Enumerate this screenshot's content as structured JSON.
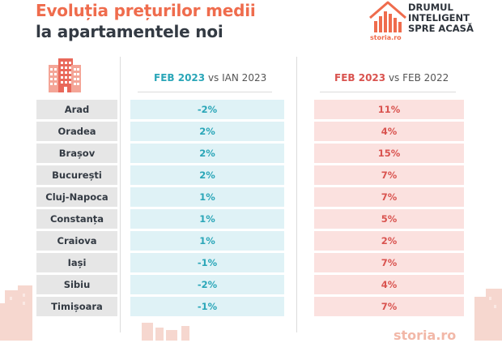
{
  "header": {
    "title_line1": "Evoluția prețurilor medii",
    "title_line2": "la apartamentele noi"
  },
  "logo": {
    "brand": "storia.ro",
    "slogan": [
      "DRUMUL",
      "INTELIGENT",
      "SPRE ACASĂ"
    ]
  },
  "columns": {
    "col1": {
      "bold": "FEB 2023",
      "vs": "vs",
      "rest": "IAN 2023"
    },
    "col2": {
      "bold": "FEB 2023",
      "vs": "vs",
      "rest": "FEB 2022"
    }
  },
  "rows": [
    {
      "city": "Arad",
      "m": "-2%",
      "y": "11%"
    },
    {
      "city": "Oradea",
      "m": "2%",
      "y": "4%"
    },
    {
      "city": "Brașov",
      "m": "2%",
      "y": "15%"
    },
    {
      "city": "București",
      "m": "2%",
      "y": "7%"
    },
    {
      "city": "Cluj-Napoca",
      "m": "1%",
      "y": "7%"
    },
    {
      "city": "Constanța",
      "m": "1%",
      "y": "5%"
    },
    {
      "city": "Craiova",
      "m": "1%",
      "y": "2%"
    },
    {
      "city": "Iași",
      "m": "-1%",
      "y": "7%"
    },
    {
      "city": "Sibiu",
      "m": "-2%",
      "y": "4%"
    },
    {
      "city": "Timișoara",
      "m": "-1%",
      "y": "7%"
    }
  ],
  "footer": {
    "brand": "storia.ro"
  },
  "colors": {
    "accent_orange": "#ef6c4d",
    "teal": "#2aa6b8",
    "teal_bg": "#dff2f6",
    "red": "#d9534f",
    "red_bg": "#fbe1df",
    "city_bg": "#e6e6e6",
    "dark_text": "#333a43"
  },
  "icons": [
    "building-icon",
    "house-chart-logo-icon",
    "city-skyline-decoration"
  ]
}
